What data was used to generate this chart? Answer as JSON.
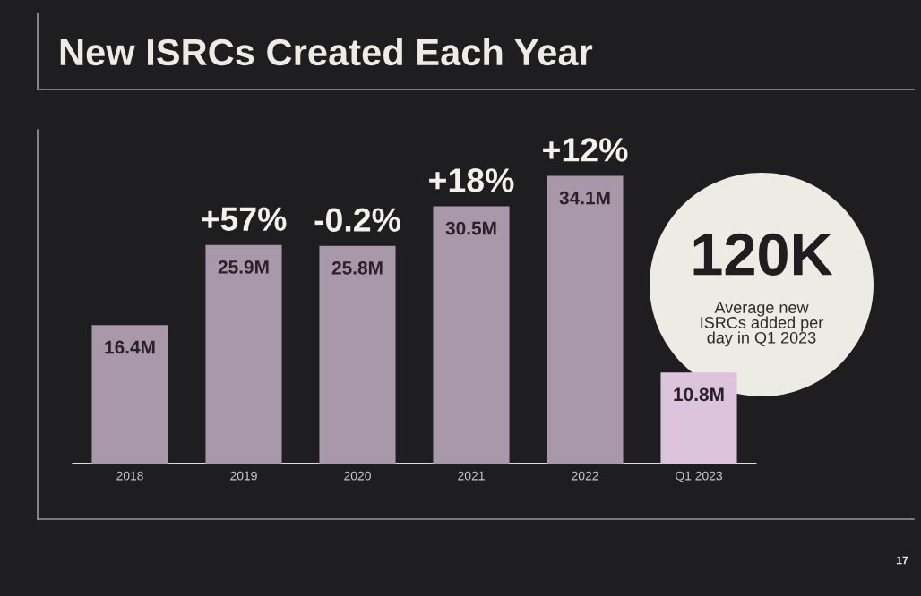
{
  "chart_data": {
    "type": "bar",
    "title": "New ISRCs Created Each Year",
    "categories": [
      "2018",
      "2019",
      "2020",
      "2021",
      "2022",
      "Q1 2023"
    ],
    "values": [
      16.4,
      25.9,
      25.8,
      30.5,
      34.1,
      10.8
    ],
    "colors": [
      "#a898a9",
      "#a898a9",
      "#a898a9",
      "#a898a9",
      "#a898a9",
      "#dcc4dc"
    ],
    "value_labels": [
      "16.4M",
      "25.9M",
      "25.8M",
      "30.5M",
      "34.1M",
      "10.8M"
    ],
    "annotations": [
      {
        "text": "+57%",
        "x": "2019",
        "y": 25.9
      },
      {
        "text": "-0.2%",
        "x": "2020",
        "y": 25.8
      },
      {
        "text": "+18%",
        "x": "2021",
        "y": 30.5
      },
      {
        "text": "+12%",
        "x": "2022",
        "y": 34.1
      },
      "120K",
      "Average new\nISRCs added per\nday in Q1 2023",
      "17"
    ],
    "grid": false,
    "legend": false
  }
}
